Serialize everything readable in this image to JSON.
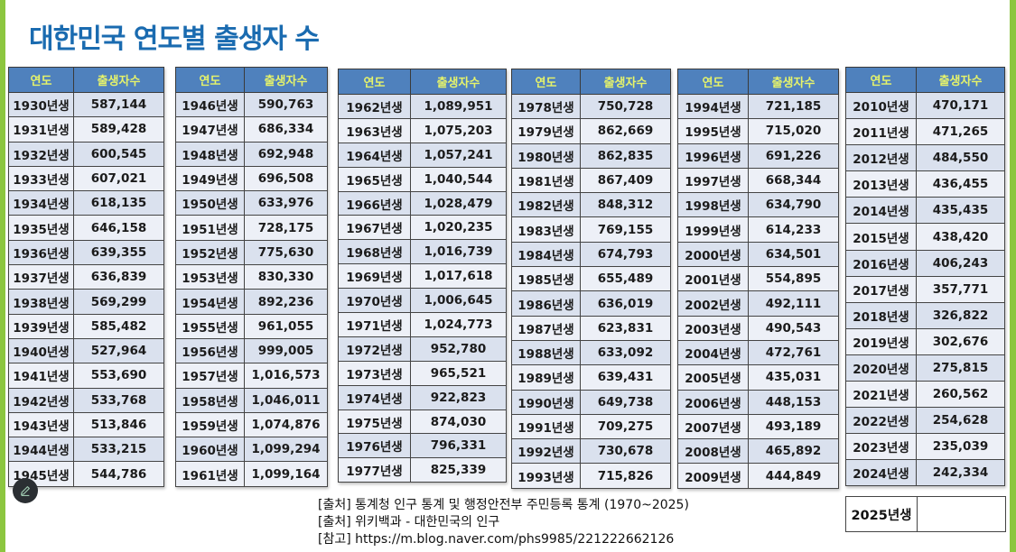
{
  "title": "대한민국 연도별 출생자 수",
  "headers": {
    "year": "연도",
    "births": "출생자수"
  },
  "colors": {
    "accent_green": "#8cc63f",
    "title_blue": "#1a6bb0",
    "header_bg": "#4f81bd",
    "header_text": "#e6f36a",
    "black": "#1b1b1b",
    "maroon": "#b5474c",
    "blue": "#2e86c8",
    "orange": "#e08a3c",
    "red": "#e8303a"
  },
  "tables": [
    {
      "rows": [
        {
          "year": "1930년생",
          "births": "587,144",
          "color": "black"
        },
        {
          "year": "1931년생",
          "births": "589,428",
          "color": "black"
        },
        {
          "year": "1932년생",
          "births": "600,545",
          "color": "black"
        },
        {
          "year": "1933년생",
          "births": "607,021",
          "color": "black"
        },
        {
          "year": "1934년생",
          "births": "618,135",
          "color": "black"
        },
        {
          "year": "1935년생",
          "births": "646,158",
          "color": "black"
        },
        {
          "year": "1936년생",
          "births": "639,355",
          "color": "black"
        },
        {
          "year": "1937년생",
          "births": "636,839",
          "color": "black"
        },
        {
          "year": "1938년생",
          "births": "569,299",
          "color": "black"
        },
        {
          "year": "1939년생",
          "births": "585,482",
          "color": "black"
        },
        {
          "year": "1940년생",
          "births": "527,964",
          "color": "black"
        },
        {
          "year": "1941년생",
          "births": "553,690",
          "color": "black"
        },
        {
          "year": "1942년생",
          "births": "533,768",
          "color": "black"
        },
        {
          "year": "1943년생",
          "births": "513,846",
          "color": "black"
        },
        {
          "year": "1944년생",
          "births": "533,215",
          "color": "black"
        },
        {
          "year": "1945년생",
          "births": "544,786",
          "color": "black"
        }
      ]
    },
    {
      "rows": [
        {
          "year": "1946년생",
          "births": "590,763",
          "color": "black"
        },
        {
          "year": "1947년생",
          "births": "686,334",
          "color": "black"
        },
        {
          "year": "1948년생",
          "births": "692,948",
          "color": "black"
        },
        {
          "year": "1949년생",
          "births": "696,508",
          "color": "black"
        },
        {
          "year": "1950년생",
          "births": "633,976",
          "color": "black"
        },
        {
          "year": "1951년생",
          "births": "728,175",
          "color": "black"
        },
        {
          "year": "1952년생",
          "births": "775,630",
          "color": "black"
        },
        {
          "year": "1953년생",
          "births": "830,330",
          "color": "maroon"
        },
        {
          "year": "1954년생",
          "births": "892,236",
          "color": "maroon"
        },
        {
          "year": "1955년생",
          "births": "961,055",
          "color": "maroon"
        },
        {
          "year": "1956년생",
          "births": "999,005",
          "color": "maroon"
        },
        {
          "year": "1957년생",
          "births": "1,016,573",
          "color": "maroon"
        },
        {
          "year": "1958년생",
          "births": "1,046,011",
          "color": "maroon"
        },
        {
          "year": "1959년생",
          "births": "1,074,876",
          "color": "maroon"
        },
        {
          "year": "1960년생",
          "births": "1,099,294",
          "color": "maroon"
        },
        {
          "year": "1961년생",
          "births": "1,099,164",
          "color": "maroon"
        }
      ]
    },
    {
      "rows": [
        {
          "year": "1962년생",
          "births": "1,089,951",
          "color": "maroon"
        },
        {
          "year": "1963년생",
          "births": "1,075,203",
          "color": "maroon"
        },
        {
          "year": "1964년생",
          "births": "1,057,241",
          "color": "maroon"
        },
        {
          "year": "1965년생",
          "births": "1,040,544",
          "color": "blue"
        },
        {
          "year": "1966년생",
          "births": "1,028,479",
          "color": "blue"
        },
        {
          "year": "1967년생",
          "births": "1,020,235",
          "color": "blue"
        },
        {
          "year": "1968년생",
          "births": "1,016,739",
          "color": "blue"
        },
        {
          "year": "1969년생",
          "births": "1,017,618",
          "color": "blue"
        },
        {
          "year": "1970년생",
          "births": "1,006,645",
          "color": "blue"
        },
        {
          "year": "1971년생",
          "births": "1,024,773",
          "color": "blue"
        },
        {
          "year": "1972년생",
          "births": "952,780",
          "color": "blue"
        },
        {
          "year": "1973년생",
          "births": "965,521",
          "color": "blue"
        },
        {
          "year": "1974년생",
          "births": "922,823",
          "color": "blue"
        },
        {
          "year": "1975년생",
          "births": "874,030",
          "color": "blue"
        },
        {
          "year": "1976년생",
          "births": "796,331",
          "color": "blue"
        },
        {
          "year": "1977년생",
          "births": "825,339",
          "color": "blue"
        }
      ]
    },
    {
      "rows": [
        {
          "year": "1978년생",
          "births": "750,728",
          "color": "blue"
        },
        {
          "year": "1979년생",
          "births": "862,669",
          "color": "blue"
        },
        {
          "year": "1980년생",
          "births": "862,835",
          "color": "orange"
        },
        {
          "year": "1981년생",
          "births": "867,409",
          "color": "orange"
        },
        {
          "year": "1982년생",
          "births": "848,312",
          "color": "orange"
        },
        {
          "year": "1983년생",
          "births": "769,155",
          "color": "orange"
        },
        {
          "year": "1984년생",
          "births": "674,793",
          "color": "orange"
        },
        {
          "year": "1985년생",
          "births": "655,489",
          "color": "orange"
        },
        {
          "year": "1986년생",
          "births": "636,019",
          "color": "orange"
        },
        {
          "year": "1987년생",
          "births": "623,831",
          "color": "orange"
        },
        {
          "year": "1988년생",
          "births": "633,092",
          "color": "orange"
        },
        {
          "year": "1989년생",
          "births": "639,431",
          "color": "orange"
        },
        {
          "year": "1990년생",
          "births": "649,738",
          "color": "orange"
        },
        {
          "year": "1991년생",
          "births": "709,275",
          "color": "orange"
        },
        {
          "year": "1992년생",
          "births": "730,678",
          "color": "orange"
        },
        {
          "year": "1993년생",
          "births": "715,826",
          "color": "orange"
        }
      ]
    },
    {
      "rows": [
        {
          "year": "1994년생",
          "births": "721,185",
          "color": "orange"
        },
        {
          "year": "1995년생",
          "births": "715,020",
          "color": "red"
        },
        {
          "year": "1996년생",
          "births": "691,226",
          "color": "red"
        },
        {
          "year": "1997년생",
          "births": "668,344",
          "color": "red"
        },
        {
          "year": "1998년생",
          "births": "634,790",
          "color": "red"
        },
        {
          "year": "1999년생",
          "births": "614,233",
          "color": "red"
        },
        {
          "year": "2000년생",
          "births": "634,501",
          "color": "red"
        },
        {
          "year": "2001년생",
          "births": "554,895",
          "color": "red"
        },
        {
          "year": "2002년생",
          "births": "492,111",
          "color": "red"
        },
        {
          "year": "2003년생",
          "births": "490,543",
          "color": "red"
        },
        {
          "year": "2004년생",
          "births": "472,761",
          "color": "red"
        },
        {
          "year": "2005년생",
          "births": "435,031",
          "color": "red"
        },
        {
          "year": "2006년생",
          "births": "448,153",
          "color": "red"
        },
        {
          "year": "2007년생",
          "births": "493,189",
          "color": "red"
        },
        {
          "year": "2008년생",
          "births": "465,892",
          "color": "red"
        },
        {
          "year": "2009년생",
          "births": "444,849",
          "color": "red"
        }
      ]
    },
    {
      "rows": [
        {
          "year": "2010년생",
          "births": "470,171",
          "color": "black"
        },
        {
          "year": "2011년생",
          "births": "471,265",
          "color": "black"
        },
        {
          "year": "2012년생",
          "births": "484,550",
          "color": "black"
        },
        {
          "year": "2013년생",
          "births": "436,455",
          "color": "black"
        },
        {
          "year": "2014년생",
          "births": "435,435",
          "color": "black"
        },
        {
          "year": "2015년생",
          "births": "438,420",
          "color": "black"
        },
        {
          "year": "2016년생",
          "births": "406,243",
          "color": "black"
        },
        {
          "year": "2017년생",
          "births": "357,771",
          "color": "black"
        },
        {
          "year": "2018년생",
          "births": "326,822",
          "color": "black"
        },
        {
          "year": "2019년생",
          "births": "302,676",
          "color": "black"
        },
        {
          "year": "2020년생",
          "births": "275,815",
          "color": "black"
        },
        {
          "year": "2021년생",
          "births": "260,562",
          "color": "black"
        },
        {
          "year": "2022년생",
          "births": "254,628",
          "color": "black"
        },
        {
          "year": "2023년생",
          "births": "235,039",
          "color": "black"
        },
        {
          "year": "2024년생",
          "births": "242,334",
          "color": "black"
        }
      ]
    }
  ],
  "pending": {
    "year": "2025년생",
    "births": ""
  },
  "sources": [
    "[출처] 통계청 인구 통계 및 행정안전부 주민등록 통계 (1970~2025)",
    "[출처] 위키백과 - 대한민국의 인구",
    "[참고] https://m.blog.naver.com/phs9985/221222662126"
  ],
  "icons": {
    "edit": "pencil-icon"
  }
}
